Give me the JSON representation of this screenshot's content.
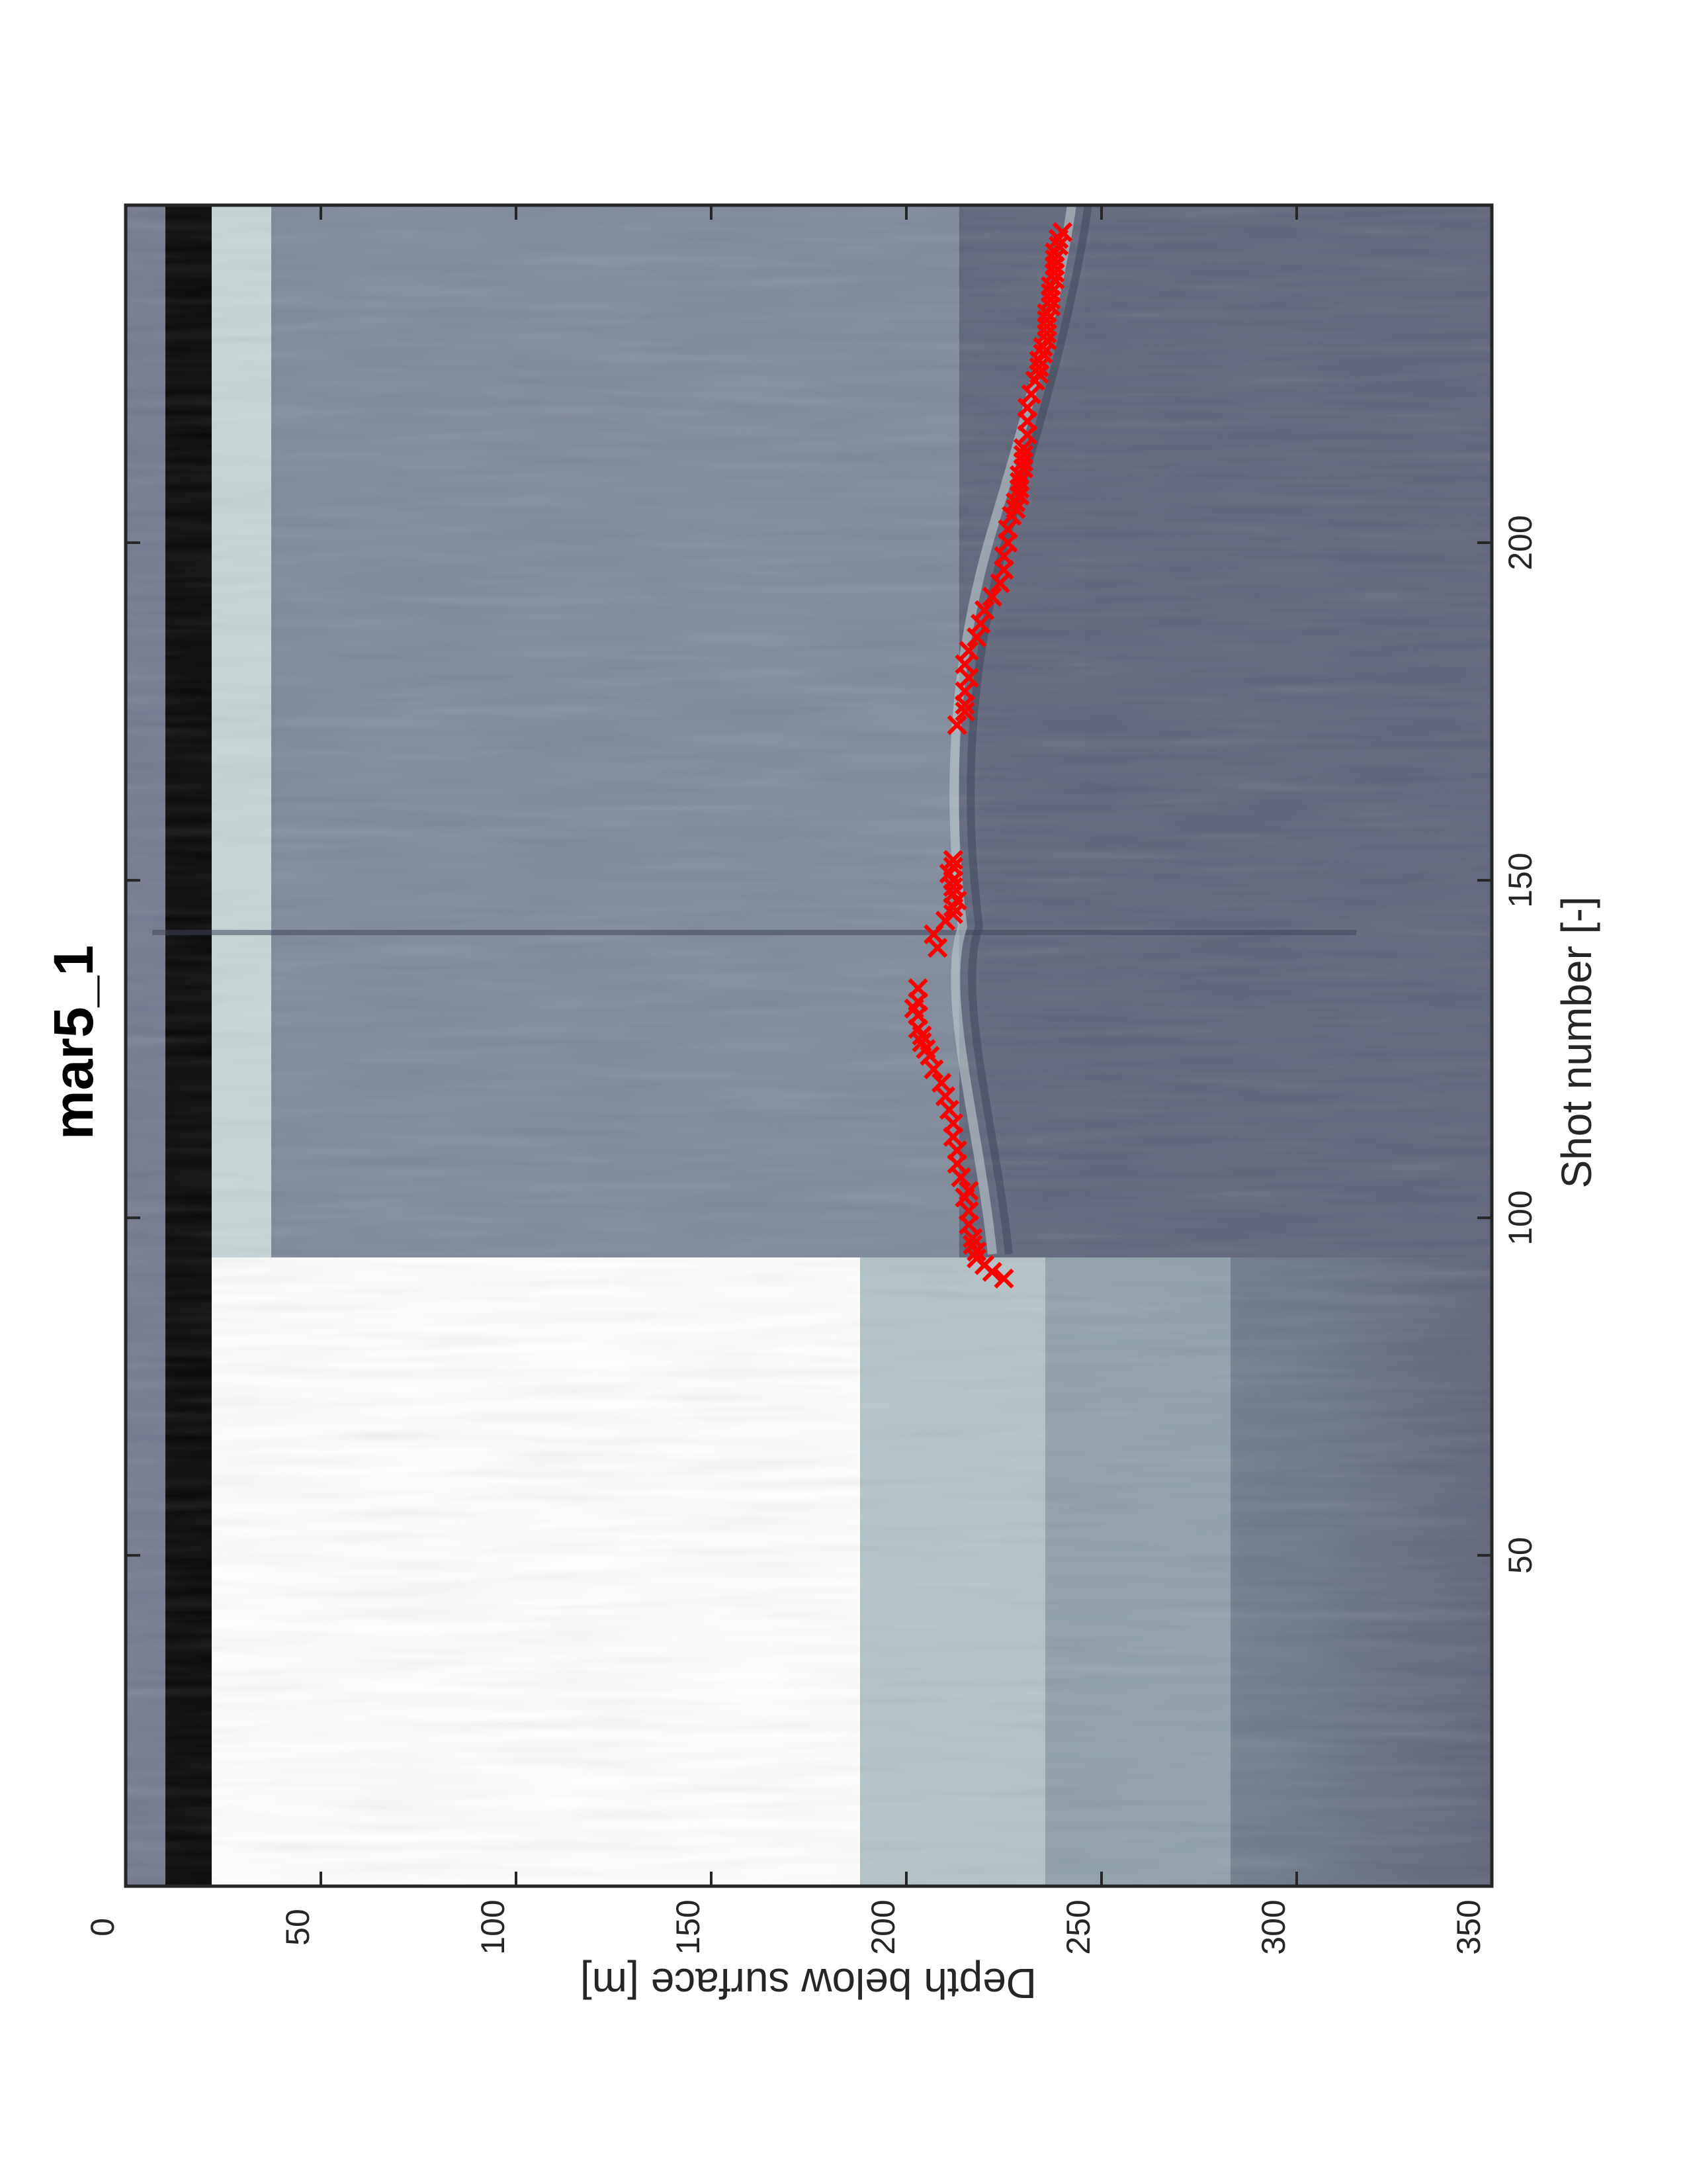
{
  "chart_data": {
    "type": "scatter",
    "title": "mar5_1",
    "xlabel": "Shot number [-]",
    "ylabel": "Depth below surface [m]",
    "xlim": [
      1,
      250
    ],
    "ylim": [
      0,
      350
    ],
    "y_reversed": true,
    "x_ticks": [
      50,
      100,
      150,
      200
    ],
    "y_ticks": [
      0,
      50,
      100,
      150,
      200,
      250,
      300,
      350
    ],
    "grid": false,
    "background": "radar image (grayscale-blue colormap)",
    "series": [
      {
        "marker": "x",
        "color": "#ff0000",
        "points": [
          [
            91,
            225
          ],
          [
            92,
            222
          ],
          [
            93,
            220
          ],
          [
            94,
            218
          ],
          [
            95,
            218
          ],
          [
            96,
            217
          ],
          [
            97,
            217
          ],
          [
            99,
            216
          ],
          [
            101,
            216
          ],
          [
            103,
            215
          ],
          [
            104,
            216
          ],
          [
            106,
            214
          ],
          [
            108,
            213
          ],
          [
            110,
            213
          ],
          [
            112,
            212
          ],
          [
            114,
            212
          ],
          [
            116,
            211
          ],
          [
            118,
            210
          ],
          [
            120,
            209
          ],
          [
            122,
            207
          ],
          [
            124,
            206
          ],
          [
            125,
            205
          ],
          [
            126,
            204
          ],
          [
            127,
            204
          ],
          [
            128,
            203
          ],
          [
            130,
            203
          ],
          [
            131,
            202
          ],
          [
            132,
            203
          ],
          [
            134,
            203
          ],
          [
            140,
            208
          ],
          [
            142,
            207
          ],
          [
            144,
            210
          ],
          [
            145,
            212
          ],
          [
            146,
            212
          ],
          [
            147,
            213
          ],
          [
            148,
            212
          ],
          [
            149,
            212
          ],
          [
            150,
            212
          ],
          [
            151,
            211
          ],
          [
            152,
            212
          ],
          [
            153,
            212
          ],
          [
            173,
            213
          ],
          [
            175,
            215
          ],
          [
            176,
            215
          ],
          [
            178,
            215
          ],
          [
            180,
            216
          ],
          [
            182,
            215
          ],
          [
            184,
            216
          ],
          [
            186,
            218
          ],
          [
            188,
            219
          ],
          [
            190,
            220
          ],
          [
            192,
            222
          ],
          [
            194,
            224
          ],
          [
            196,
            225
          ],
          [
            198,
            225
          ],
          [
            200,
            226
          ],
          [
            202,
            226
          ],
          [
            204,
            227
          ],
          [
            205,
            228
          ],
          [
            206,
            228
          ],
          [
            207,
            229
          ],
          [
            208,
            229
          ],
          [
            209,
            229
          ],
          [
            210,
            229
          ],
          [
            211,
            230
          ],
          [
            212,
            230
          ],
          [
            213,
            230
          ],
          [
            214,
            230
          ],
          [
            216,
            231
          ],
          [
            218,
            231
          ],
          [
            220,
            231
          ],
          [
            222,
            232
          ],
          [
            224,
            233
          ],
          [
            225,
            234
          ],
          [
            226,
            234
          ],
          [
            227,
            234
          ],
          [
            228,
            235
          ],
          [
            229,
            235
          ],
          [
            230,
            236
          ],
          [
            231,
            236
          ],
          [
            232,
            236
          ],
          [
            233,
            236
          ],
          [
            234,
            236
          ],
          [
            235,
            237
          ],
          [
            236,
            237
          ],
          [
            237,
            237
          ],
          [
            238,
            237
          ],
          [
            239,
            238
          ],
          [
            240,
            238
          ],
          [
            241,
            238
          ],
          [
            242,
            238
          ],
          [
            243,
            238
          ],
          [
            244,
            239
          ],
          [
            245,
            239
          ],
          [
            246,
            240
          ]
        ]
      }
    ]
  },
  "colors": {
    "axis": "#262626",
    "marker": "#ff0000",
    "image_dark": "#5c6178",
    "image_mid": "#8a98a5",
    "image_light": "#c9dcdc"
  }
}
